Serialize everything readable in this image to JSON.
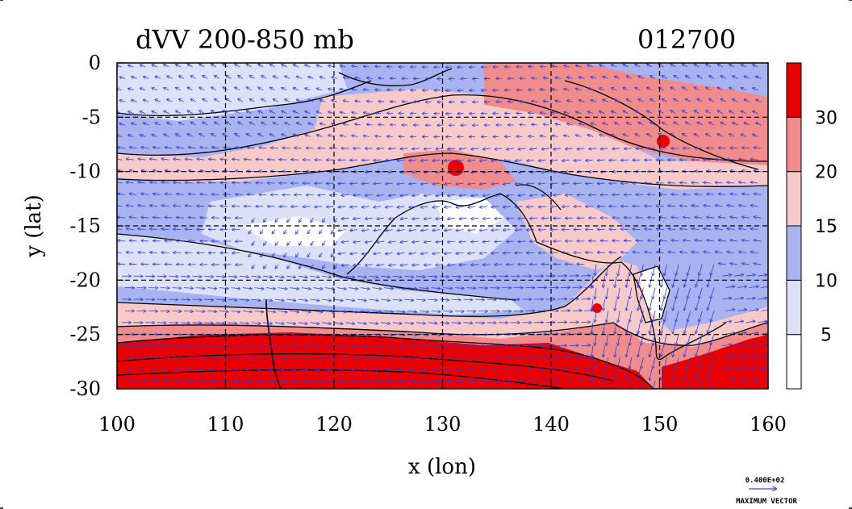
{
  "title": "dVV 200-850 mb",
  "timestamp": "012700",
  "x_axis": {
    "label": "x (lon)",
    "ticks": [
      "100",
      "110",
      "120",
      "130",
      "140",
      "150",
      "160"
    ],
    "range": [
      100,
      160
    ]
  },
  "y_axis": {
    "label": "y (lat)",
    "ticks": [
      "0",
      "-5",
      "-10",
      "-15",
      "-20",
      "-25",
      "-30"
    ],
    "range": [
      -30,
      0
    ]
  },
  "colorbar": {
    "labels": [
      "5",
      "10",
      "15",
      "20",
      "30"
    ],
    "bins": [
      {
        "color": "#ffffff"
      },
      {
        "color": "#dde1f7"
      },
      {
        "color": "#a9b3ef"
      },
      {
        "color": "#f7c9c9"
      },
      {
        "color": "#f08c8c"
      },
      {
        "color": "#e80000"
      }
    ]
  },
  "legend_vector": {
    "value": "0.400E+02",
    "label": "MAXIMUM VECTOR",
    "color": "#3344dd"
  },
  "grid": true,
  "vector_color": "#2a3ee0",
  "contour_color": "#000000"
}
